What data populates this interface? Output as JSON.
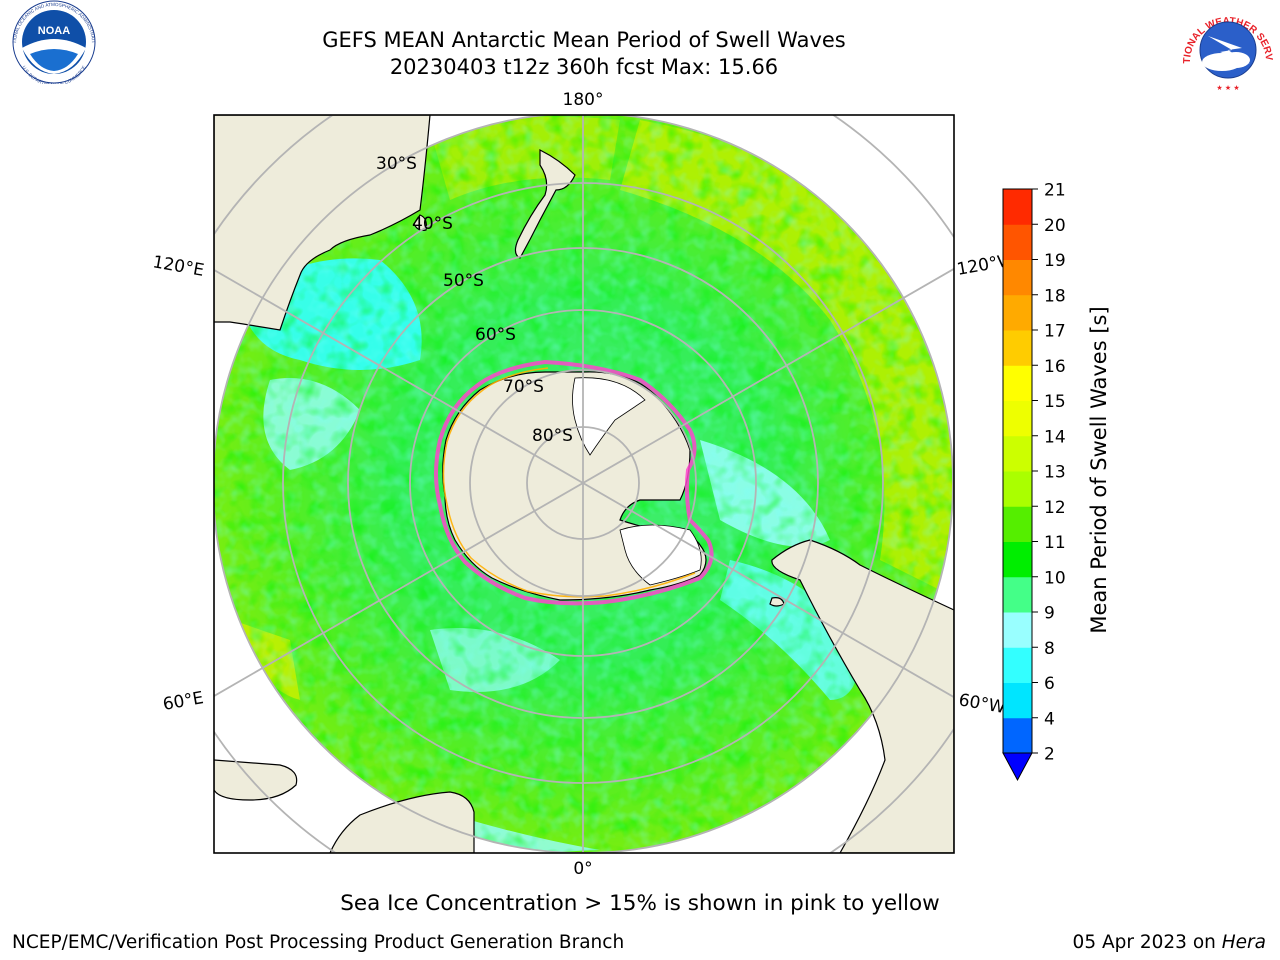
{
  "header": {
    "title_line1": "GEFS MEAN Antarctic Mean Period of Swell Waves",
    "title_line2": "20230403 t12z 360h fcst   Max: 15.66"
  },
  "logos": {
    "noaa": {
      "icon": "noaa-logo",
      "text": "NOAA",
      "ring_text_top": "NATIONAL OCEANIC AND ATMOSPHERIC ADMINISTRATION",
      "ring_text_bottom": "U.S. DEPARTMENT OF COMMERCE"
    },
    "nws": {
      "icon": "nws-logo",
      "ring_text": "NATIONAL WEATHER SERVICE"
    }
  },
  "map": {
    "projection": "south-polar-stereographic",
    "longitude_labels": {
      "top": "180°",
      "bottom": "0°",
      "upper_left": "120°E",
      "upper_right": "120°W",
      "lower_left": "60°E",
      "lower_right": "60°W"
    },
    "latitude_labels": [
      "30°S",
      "40°S",
      "50°S",
      "60°S",
      "70°S",
      "80°S"
    ],
    "colors": {
      "land": "#eeecdb",
      "ice_edge": "#ff44cc",
      "ice_edge_inner": "#ffb000",
      "grid": "#b4b4b4"
    }
  },
  "colorbar": {
    "label": "Mean Period of Swell Waves [s]",
    "ticks": [
      "2",
      "4",
      "6",
      "8",
      "9",
      "10",
      "11",
      "12",
      "13",
      "14",
      "15",
      "16",
      "17",
      "18",
      "19",
      "20",
      "21"
    ],
    "colors": [
      "#0066ff",
      "#00e5ff",
      "#33ffff",
      "#99ffff",
      "#44ff88",
      "#00ee00",
      "#55ee00",
      "#aaff00",
      "#ccff00",
      "#eeff00",
      "#ffff00",
      "#ffcc00",
      "#ffaa00",
      "#ff8800",
      "#ff5500",
      "#ff2a00"
    ],
    "extend_low_color": "#0000ff"
  },
  "footer": {
    "sea_ice_note": "Sea Ice Concentration > 15% is shown in pink to yellow",
    "credit": "NCEP/EMC/Verification Post Processing Product Generation Branch",
    "date_prefix": "05 Apr 2023 on ",
    "machine": "Hera"
  }
}
